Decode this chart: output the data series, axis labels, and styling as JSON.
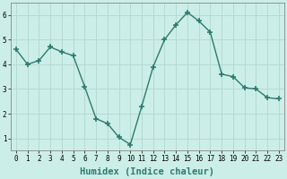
{
  "x": [
    0,
    1,
    2,
    3,
    4,
    5,
    6,
    7,
    8,
    9,
    10,
    11,
    12,
    13,
    14,
    15,
    16,
    17,
    18,
    19,
    20,
    21,
    22,
    23
  ],
  "y": [
    4.6,
    4.0,
    4.15,
    4.7,
    4.5,
    4.35,
    3.1,
    1.8,
    1.6,
    1.05,
    0.75,
    2.3,
    3.9,
    5.0,
    5.6,
    6.1,
    5.75,
    5.3,
    3.6,
    3.5,
    3.05,
    3.0,
    2.65,
    2.6
  ],
  "line_color": "#2d7b6e",
  "marker": "+",
  "marker_size": 4,
  "marker_linewidth": 1.2,
  "bg_color": "#cceee8",
  "grid_color": "#b0d8d0",
  "xlabel": "Humidex (Indice chaleur)",
  "xlabel_fontsize": 7.5,
  "ylim": [
    0.5,
    6.5
  ],
  "xlim": [
    -0.5,
    23.5
  ],
  "yticks": [
    1,
    2,
    3,
    4,
    5,
    6
  ],
  "xticks": [
    0,
    1,
    2,
    3,
    4,
    5,
    6,
    7,
    8,
    9,
    10,
    11,
    12,
    13,
    14,
    15,
    16,
    17,
    18,
    19,
    20,
    21,
    22,
    23
  ],
  "tick_fontsize": 5.5,
  "linewidth": 1.0
}
